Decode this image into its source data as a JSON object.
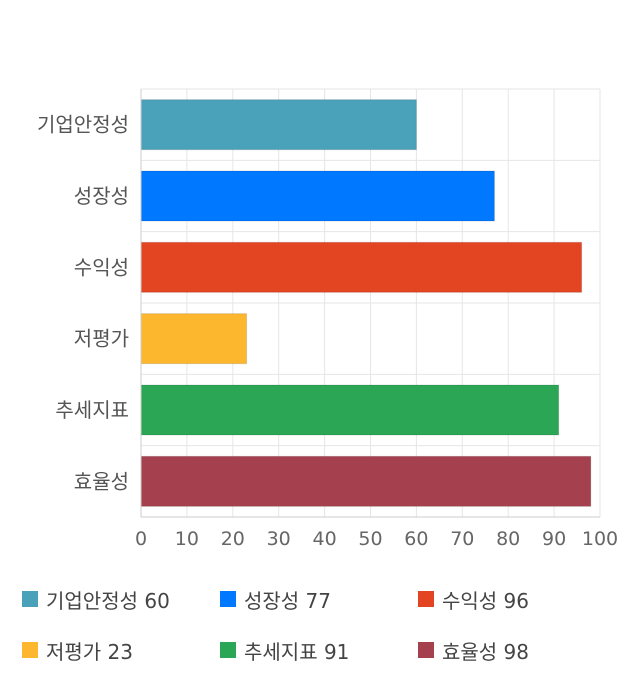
{
  "chart_data": {
    "type": "bar",
    "orientation": "horizontal",
    "categories": [
      "기업안정성",
      "성장성",
      "수익성",
      "저평가",
      "추세지표",
      "효율성"
    ],
    "values": [
      60,
      77,
      96,
      23,
      91,
      98
    ],
    "colors": [
      "#4aa1ba",
      "#0078ff",
      "#e34422",
      "#fdb72f",
      "#2ba655",
      "#a5414e"
    ],
    "xlim": [
      0,
      100
    ],
    "xticks": [
      "0",
      "10",
      "20",
      "30",
      "40",
      "50",
      "60",
      "70",
      "80",
      "90",
      "100"
    ],
    "grid": true,
    "legend_position": "bottom"
  },
  "legend": [
    {
      "label": "기업안정성 60"
    },
    {
      "label": "성장성 77"
    },
    {
      "label": "수익성 96"
    },
    {
      "label": "저평가 23"
    },
    {
      "label": "추세지표 91"
    },
    {
      "label": "효율성 98"
    }
  ]
}
